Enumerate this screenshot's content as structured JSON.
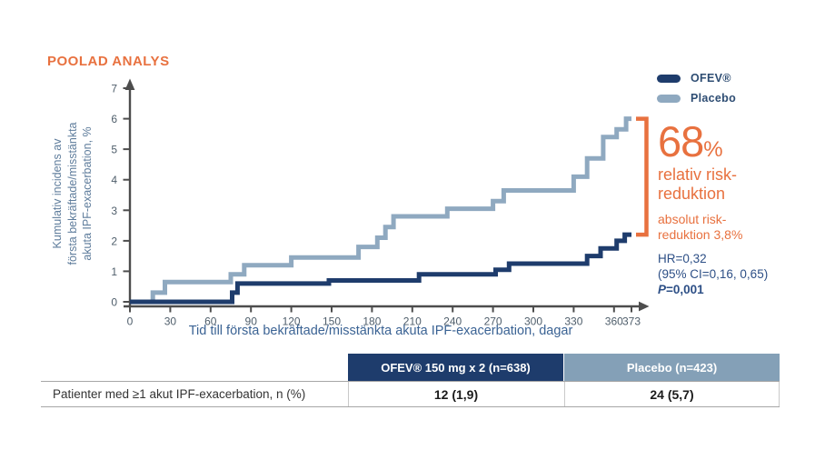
{
  "badge": "POOLAD ANALYS",
  "colors": {
    "accent_orange": "#e8713f",
    "navy": "#1e3c6c",
    "steel_blue": "#8fa9c0",
    "axis_gray": "#4d4d4d",
    "stats_blue": "#2d4f86"
  },
  "legend": [
    {
      "label": "OFEV®",
      "color": "#1e3c6c"
    },
    {
      "label": "Placebo",
      "color": "#8fa9c0"
    }
  ],
  "chart_data": {
    "type": "line",
    "variant": "step-cumulative-incidence",
    "xlabel": "Tid till första bekräftade/misstänkta akuta IPF-exacerbation, dagar",
    "ylabel": "Kumulativ incidens av första bekräftade/misstänkta akuta IPF-exacerbation, %",
    "ylabel_lines": [
      "Kumulativ incidens av",
      "första bekräftade/misstänkta",
      "akuta IPF-exacerbation, %"
    ],
    "xlim": [
      0,
      373
    ],
    "ylim": [
      0,
      7
    ],
    "x_ticks": [
      0,
      30,
      60,
      90,
      120,
      150,
      180,
      210,
      240,
      270,
      300,
      330,
      360,
      373
    ],
    "y_ticks": [
      0,
      1,
      2,
      3,
      4,
      5,
      6,
      7
    ],
    "grid": false,
    "legend_position": "top-right",
    "series": [
      {
        "name": "OFEV®",
        "color": "#1e3c6c",
        "final_value_pct": 2.2,
        "steps": [
          [
            0,
            0
          ],
          [
            76,
            0.3
          ],
          [
            80,
            0.6
          ],
          [
            148,
            0.7
          ],
          [
            215,
            0.9
          ],
          [
            272,
            1.05
          ],
          [
            282,
            1.25
          ],
          [
            340,
            1.5
          ],
          [
            350,
            1.75
          ],
          [
            362,
            2.0
          ],
          [
            368,
            2.2
          ]
        ]
      },
      {
        "name": "Placebo",
        "color": "#8fa9c0",
        "final_value_pct": 6.0,
        "steps": [
          [
            0,
            0
          ],
          [
            17,
            0.3
          ],
          [
            26,
            0.65
          ],
          [
            75,
            0.9
          ],
          [
            85,
            1.2
          ],
          [
            120,
            1.45
          ],
          [
            170,
            1.8
          ],
          [
            184,
            2.1
          ],
          [
            190,
            2.45
          ],
          [
            196,
            2.8
          ],
          [
            236,
            3.05
          ],
          [
            270,
            3.3
          ],
          [
            278,
            3.65
          ],
          [
            330,
            4.1
          ],
          [
            340,
            4.7
          ],
          [
            352,
            5.4
          ],
          [
            362,
            5.65
          ],
          [
            369,
            6.0
          ]
        ]
      }
    ]
  },
  "annotation": {
    "headline_number": "68",
    "headline_unit": "%",
    "headline_lines": [
      "relativ risk-",
      "reduktion"
    ],
    "secondary_lines": [
      "absolut risk-",
      "reduktion 3,8%"
    ],
    "hr_line": "HR=0,32",
    "ci_line": "(95% CI=0,16, 0,65)",
    "p_label": "P",
    "p_value": "=0,001",
    "bracket_color": "#e8713f"
  },
  "table": {
    "row_label": "Patienter med ≥1 akut IPF-exacerbation, n (%)",
    "columns": [
      {
        "label": "OFEV® 150 mg x 2 (n=638)",
        "bg": "#1e3c6c",
        "value": "12 (1,9)"
      },
      {
        "label": "Placebo (n=423)",
        "bg": "#84a0b7",
        "value": "24 (5,7)"
      }
    ]
  }
}
